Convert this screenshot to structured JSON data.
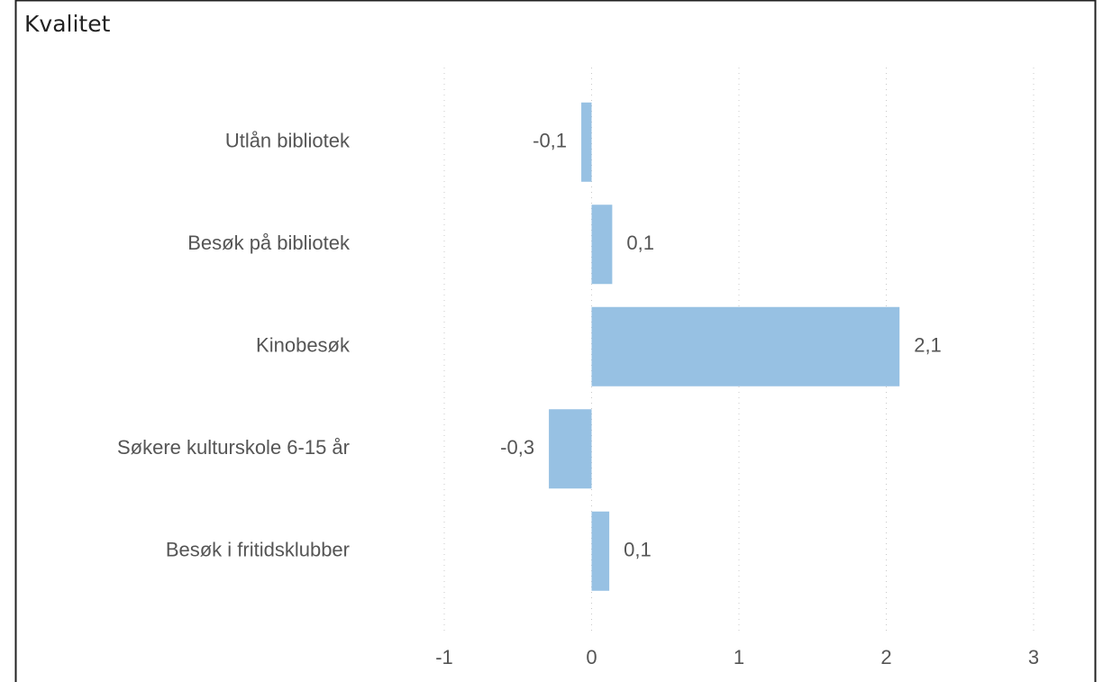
{
  "chart_data": {
    "type": "bar",
    "orientation": "horizontal",
    "title": "Kvalitet",
    "categories": [
      "Utlån bibliotek",
      "Besøk på bibliotek",
      "Kinobesøk",
      "Søkere kulturskole 6-15 år",
      "Besøk i fritidsklubber"
    ],
    "values": [
      -0.07,
      0.14,
      2.09,
      -0.29,
      0.12
    ],
    "value_labels": [
      "-0,1",
      "0,1",
      "2,1",
      "-0,3",
      "0,1"
    ],
    "color": "#97c1e3",
    "xlim": [
      -1,
      3
    ],
    "xticks": [
      -1,
      0,
      1,
      2,
      3
    ],
    "grid": true
  }
}
